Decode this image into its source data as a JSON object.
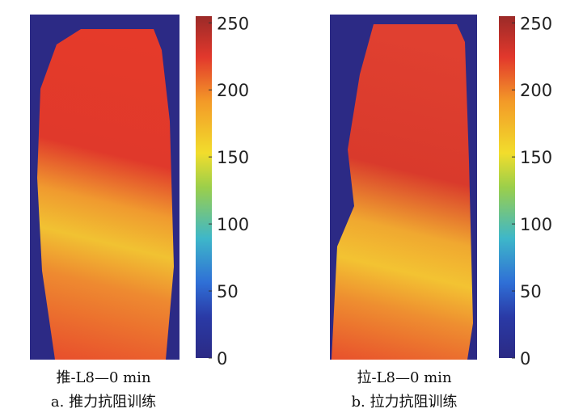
{
  "chart_data": [
    {
      "type": "heatmap",
      "title": "推-L8—0 min",
      "caption": "a. 推力抗阻训练",
      "clim": [
        0,
        255
      ],
      "cticks": [
        0,
        50,
        100,
        150,
        200,
        250
      ]
    },
    {
      "type": "heatmap",
      "title": "拉-L8—0 min",
      "caption": "b. 拉力抗阻训练",
      "clim": [
        0,
        255
      ],
      "cticks": [
        0,
        50,
        100,
        150,
        200,
        250
      ]
    }
  ]
}
